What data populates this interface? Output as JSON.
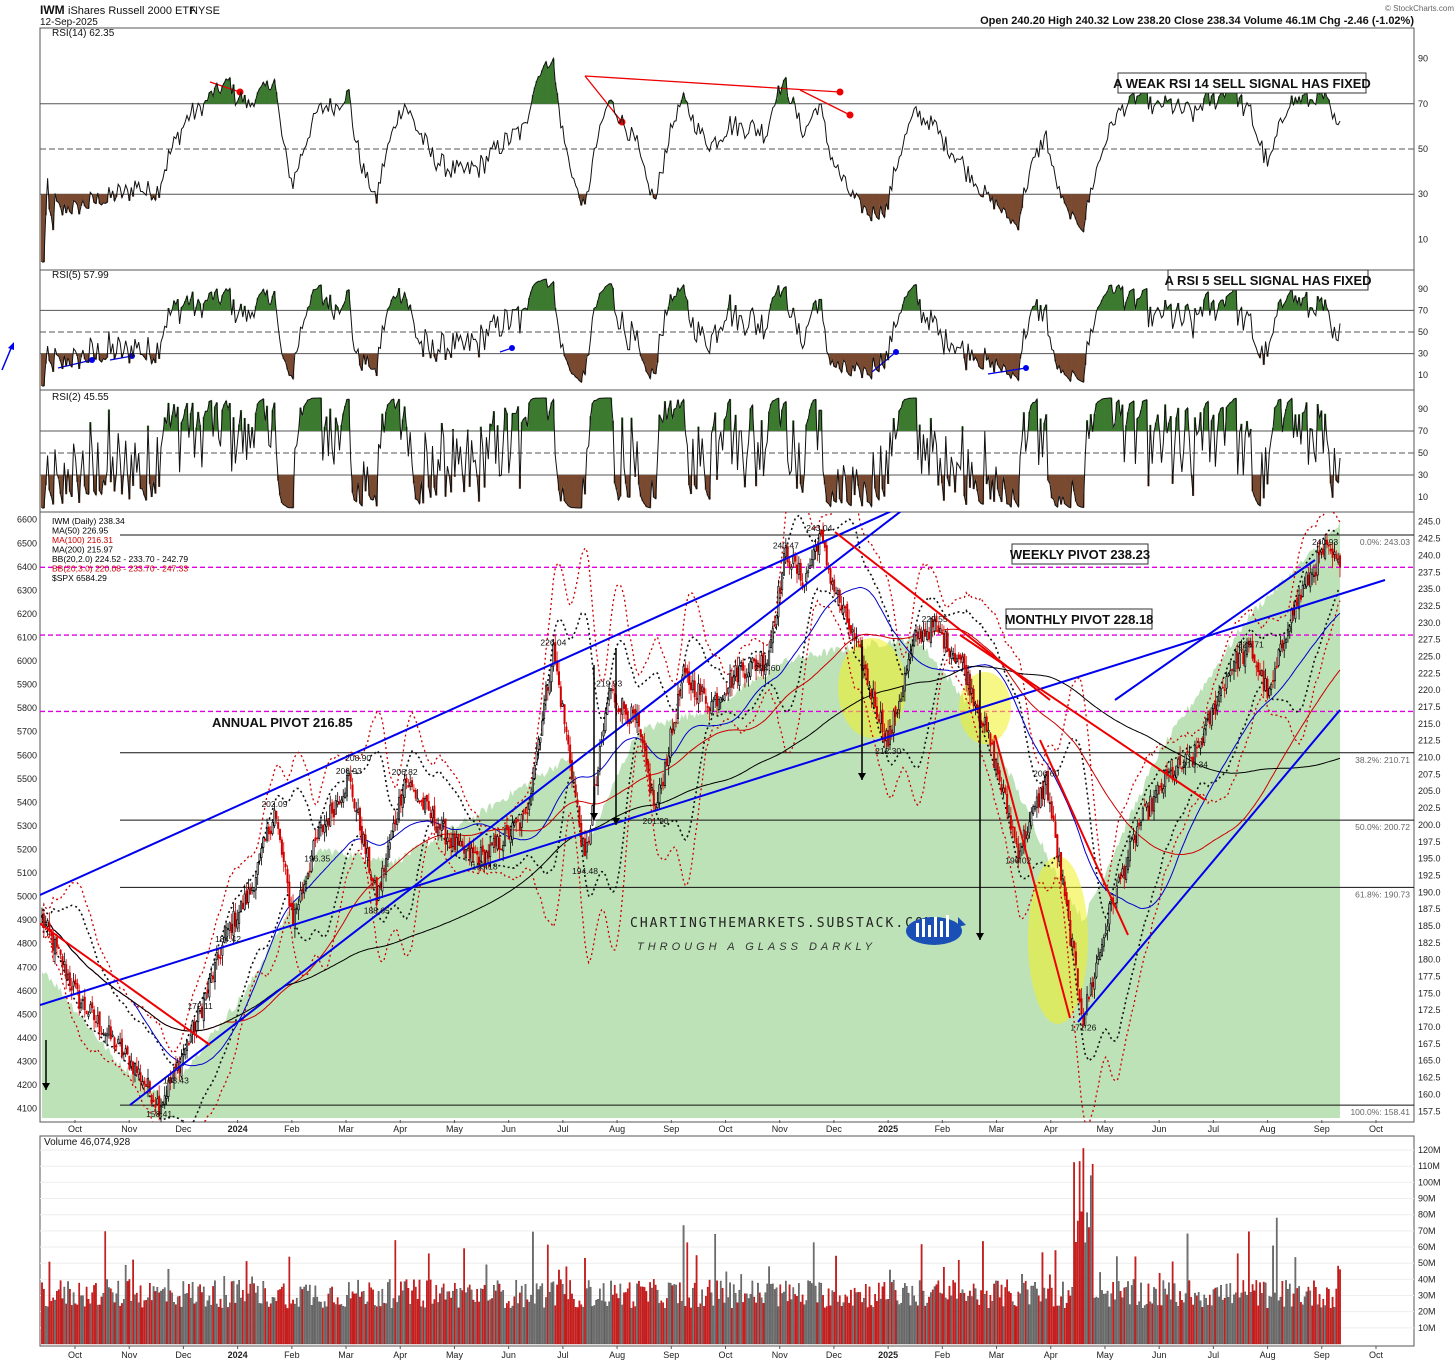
{
  "header": {
    "symbol": "IWM",
    "name": "iShares Russell 2000 ETF",
    "exchange": "NYSE",
    "date": "12-Sep-2025",
    "ohlc_text": "Open 240.20   High 240.32   Low 238.20   Close 238.34   Volume 46.1M   Chg -2.46 (-1.02%)",
    "brand": "© StockCharts.com"
  },
  "watermark": {
    "line1": "CHARTINGTHEMARKETS.SUBSTACK.COM",
    "line2": "THROUGH A GLASS DARKLY"
  },
  "months": [
    "Oct",
    "Nov",
    "Dec",
    "2024",
    "Feb",
    "Mar",
    "Apr",
    "May",
    "Jun",
    "Jul",
    "Aug",
    "Sep",
    "Oct",
    "Nov",
    "Dec",
    "2025",
    "Feb",
    "Mar",
    "Apr",
    "May",
    "Jun",
    "Jul",
    "Aug",
    "Sep",
    "Oct"
  ],
  "colors": {
    "up": "#000000",
    "down": "#d40000",
    "ma50": "#0000cc",
    "ma100": "#cc0000",
    "ma200": "#000000",
    "spx_fill": "#a8d8a0",
    "pivot": "#e000e0",
    "trend_blue": "#0000ee",
    "trend_red": "#ee0000",
    "highlight": "#f0f020"
  },
  "panels": {
    "rsi14": {
      "label": "RSI(14) 62.35",
      "ticks": [
        "90",
        "70",
        "50",
        "30",
        "10"
      ],
      "annotation": "A WEAK RSI 14 SELL SIGNAL HAS FIXED"
    },
    "rsi5": {
      "label": "RSI(5) 57.99",
      "ticks": [
        "90",
        "70",
        "50",
        "30",
        "10"
      ],
      "annotation": "A RSI 5 SELL SIGNAL HAS FIXED"
    },
    "rsi2": {
      "label": "RSI(2) 45.55",
      "ticks": [
        "90",
        "70",
        "50",
        "30",
        "10"
      ]
    },
    "price": {
      "legend": [
        "IWM (Daily) 238.34",
        "MA(50) 226.95",
        "MA(100) 216.31",
        "MA(200) 215.97",
        "BB(20,2.0) 224.52 - 233.70 - 242.79",
        "BB(20,3.0) 220.08 - 233.70 - 247.33",
        "$SPX 6584.29"
      ],
      "right_ticks": [
        "245.0",
        "242.5",
        "240.0",
        "237.5",
        "235.0",
        "232.5",
        "230.0",
        "227.5",
        "225.0",
        "222.5",
        "220.0",
        "217.5",
        "215.0",
        "212.5",
        "210.0",
        "207.5",
        "205.0",
        "202.5",
        "200.0",
        "197.5",
        "195.0",
        "192.5",
        "190.0",
        "187.5",
        "185.0",
        "182.5",
        "180.0",
        "177.5",
        "175.0",
        "172.5",
        "170.0",
        "167.5",
        "165.0",
        "162.5",
        "160.0",
        "157.5"
      ],
      "left_ticks": [
        "6600",
        "6500",
        "6400",
        "6300",
        "6200",
        "6100",
        "6000",
        "5900",
        "5800",
        "5700",
        "5600",
        "5500",
        "5400",
        "5300",
        "5200",
        "5100",
        "5000",
        "4900",
        "4800",
        "4700",
        "4600",
        "4500",
        "4400",
        "4300",
        "4200",
        "4100"
      ],
      "fib_labels": [
        "0.0%: 243.03",
        "38.2%: 210.71",
        "50.0%: 200.72",
        "61.8%: 190.73",
        "100.0%: 158.41"
      ],
      "weekly_pivot": "WEEKLY PIVOT 238.23",
      "monthly_pivot": "MONTHLY PIVOT 228.18",
      "annual_pivot": "ANNUAL PIVOT 216.85",
      "price_labels": [
        "158.41",
        "163.43",
        "172.11",
        "184.42",
        "202.09",
        "196.35",
        "188.65",
        "206.93",
        "208.90",
        "206.82",
        "195.18",
        "194.48",
        "226.04",
        "219.93",
        "201.90",
        "224.60",
        "240.47",
        "243.04",
        "212.30",
        "229.55",
        "196.02",
        "206.60",
        "171.26",
        "225.71",
        "210.34",
        "240.93"
      ]
    },
    "volume": {
      "label": "Volume 46,074,928",
      "ticks": [
        "120M",
        "110M",
        "100M",
        "90M",
        "80M",
        "70M",
        "60M",
        "50M",
        "40M",
        "30M",
        "20M",
        "10M"
      ]
    }
  },
  "chart_data": {
    "type": "candlestick",
    "title": "IWM iShares Russell 2000 ETF NYSE",
    "price_range": [
      156.5,
      246.0
    ],
    "spx_range": [
      4060,
      6620
    ],
    "waypoints_price": [
      [
        0,
        186
      ],
      [
        20,
        174
      ],
      [
        50,
        164
      ],
      [
        63,
        158.4
      ],
      [
        72,
        163.4
      ],
      [
        85,
        172.1
      ],
      [
        100,
        184.4
      ],
      [
        112,
        190
      ],
      [
        125,
        202.1
      ],
      [
        135,
        186
      ],
      [
        148,
        198
      ],
      [
        165,
        207
      ],
      [
        180,
        189
      ],
      [
        195,
        206.8
      ],
      [
        210,
        201
      ],
      [
        225,
        196
      ],
      [
        238,
        195.2
      ],
      [
        260,
        201
      ],
      [
        275,
        226
      ],
      [
        285,
        208
      ],
      [
        292,
        194.5
      ],
      [
        305,
        219.9
      ],
      [
        320,
        215
      ],
      [
        330,
        202
      ],
      [
        345,
        222
      ],
      [
        360,
        218
      ],
      [
        375,
        223
      ],
      [
        390,
        224.6
      ],
      [
        400,
        240.5
      ],
      [
        410,
        236
      ],
      [
        418,
        243
      ],
      [
        425,
        236
      ],
      [
        440,
        225
      ],
      [
        455,
        212.3
      ],
      [
        470,
        228
      ],
      [
        480,
        229.5
      ],
      [
        495,
        224
      ],
      [
        510,
        212
      ],
      [
        525,
        196
      ],
      [
        540,
        206.6
      ],
      [
        560,
        171.3
      ],
      [
        575,
        188
      ],
      [
        590,
        200
      ],
      [
        605,
        207
      ],
      [
        620,
        210.3
      ],
      [
        640,
        224
      ],
      [
        650,
        226
      ],
      [
        660,
        219
      ],
      [
        670,
        230
      ],
      [
        680,
        236
      ],
      [
        690,
        240.9
      ],
      [
        698,
        238.3
      ]
    ],
    "waypoints_spx": [
      [
        0,
        4700
      ],
      [
        40,
        4300
      ],
      [
        65,
        4150
      ],
      [
        110,
        4600
      ],
      [
        150,
        5200
      ],
      [
        190,
        5150
      ],
      [
        235,
        5350
      ],
      [
        285,
        5600
      ],
      [
        292,
        5200
      ],
      [
        320,
        5700
      ],
      [
        360,
        5800
      ],
      [
        400,
        6000
      ],
      [
        430,
        6050
      ],
      [
        470,
        6100
      ],
      [
        510,
        5700
      ],
      [
        545,
        5100
      ],
      [
        560,
        4900
      ],
      [
        600,
        5600
      ],
      [
        650,
        6200
      ],
      [
        698,
        6580
      ]
    ],
    "rsi14_last": 62.35,
    "rsi5_last": 57.99,
    "rsi2_last": 45.55,
    "volume_last": 46074928,
    "ma50_last": 226.95,
    "ma100_last": 216.31,
    "ma200_last": 215.97,
    "weekly_pivot": 238.23,
    "monthly_pivot": 228.18,
    "annual_pivot": 216.85,
    "fib_levels": [
      243.03,
      210.71,
      200.72,
      190.73,
      158.41
    ]
  }
}
